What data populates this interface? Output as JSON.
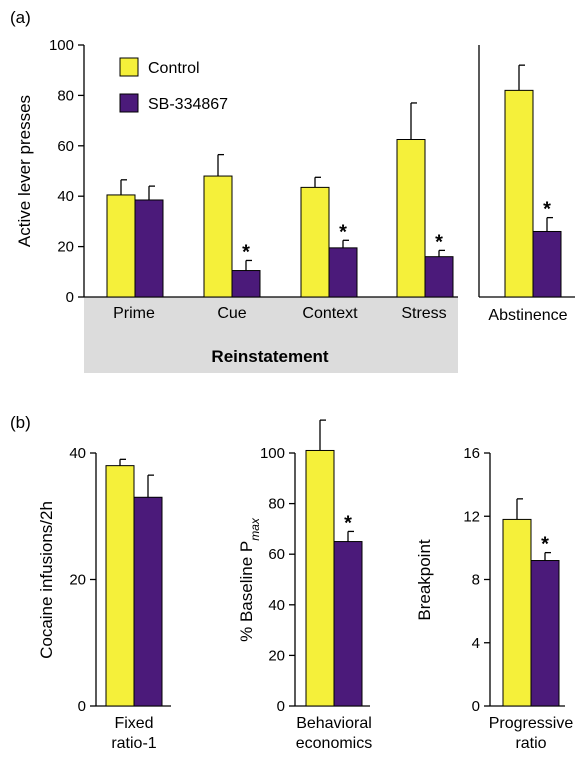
{
  "colors": {
    "control": "#F5F03A",
    "drug": "#4B1A7A",
    "band": "#DCDCDC"
  },
  "chart_data": [
    {
      "panel": "(a)",
      "type": "bar",
      "ylabel": "Active lever presses",
      "ylim": [
        0,
        100
      ],
      "yticks": [
        "0",
        "20",
        "40",
        "60",
        "80",
        "100"
      ],
      "legend": {
        "placement": "top-left",
        "entries": [
          "Control",
          "SB-334867"
        ]
      },
      "group_label": "Reinstatement",
      "categories": [
        "Prime",
        "Cue",
        "Context",
        "Stress",
        "Abstinence"
      ],
      "series": [
        {
          "name": "Control",
          "values": [
            40.5,
            48,
            43.5,
            62.5,
            82
          ],
          "errors": [
            6,
            8.5,
            4,
            14.5,
            10
          ]
        },
        {
          "name": "SB-334867",
          "values": [
            38.5,
            10.5,
            19.5,
            16,
            26
          ],
          "errors": [
            5.5,
            4,
            3,
            2.5,
            5.5
          ]
        }
      ],
      "significant": [
        false,
        true,
        true,
        true,
        true
      ]
    },
    {
      "panel": "(b)",
      "type": "bar",
      "ylabel": "Cocaine infusions/2h",
      "ylim": [
        0,
        40
      ],
      "yticks": [
        "0",
        "20",
        "40"
      ],
      "categories": [
        "Fixed ratio-1"
      ],
      "category_lines": [
        "Fixed",
        "ratio-1"
      ],
      "series": [
        {
          "name": "Control",
          "values": [
            38
          ],
          "errors": [
            1
          ]
        },
        {
          "name": "SB-334867",
          "values": [
            33
          ],
          "errors": [
            3.5
          ]
        }
      ],
      "significant": [
        false
      ]
    },
    {
      "type": "bar",
      "ylabel": "% Baseline P",
      "ylabel_sub": "max",
      "ylim": [
        0,
        100
      ],
      "yticks": [
        "0",
        "20",
        "40",
        "60",
        "80",
        "100"
      ],
      "categories": [
        "Behavioral economics"
      ],
      "category_lines": [
        "Behavioral",
        "economics"
      ],
      "series": [
        {
          "name": "Control",
          "values": [
            101
          ],
          "errors": [
            12
          ]
        },
        {
          "name": "SB-334867",
          "values": [
            65
          ],
          "errors": [
            4
          ]
        }
      ],
      "significant": [
        true
      ]
    },
    {
      "type": "bar",
      "ylabel": "Breakpoint",
      "ylim": [
        0,
        16
      ],
      "yticks": [
        "0",
        "4",
        "8",
        "12",
        "16"
      ],
      "categories": [
        "Progressive ratio"
      ],
      "category_lines": [
        "Progressive",
        "ratio"
      ],
      "series": [
        {
          "name": "Control",
          "values": [
            11.8
          ],
          "errors": [
            1.3
          ]
        },
        {
          "name": "SB-334867",
          "values": [
            9.2
          ],
          "errors": [
            0.5
          ]
        }
      ],
      "significant": [
        true
      ]
    }
  ]
}
